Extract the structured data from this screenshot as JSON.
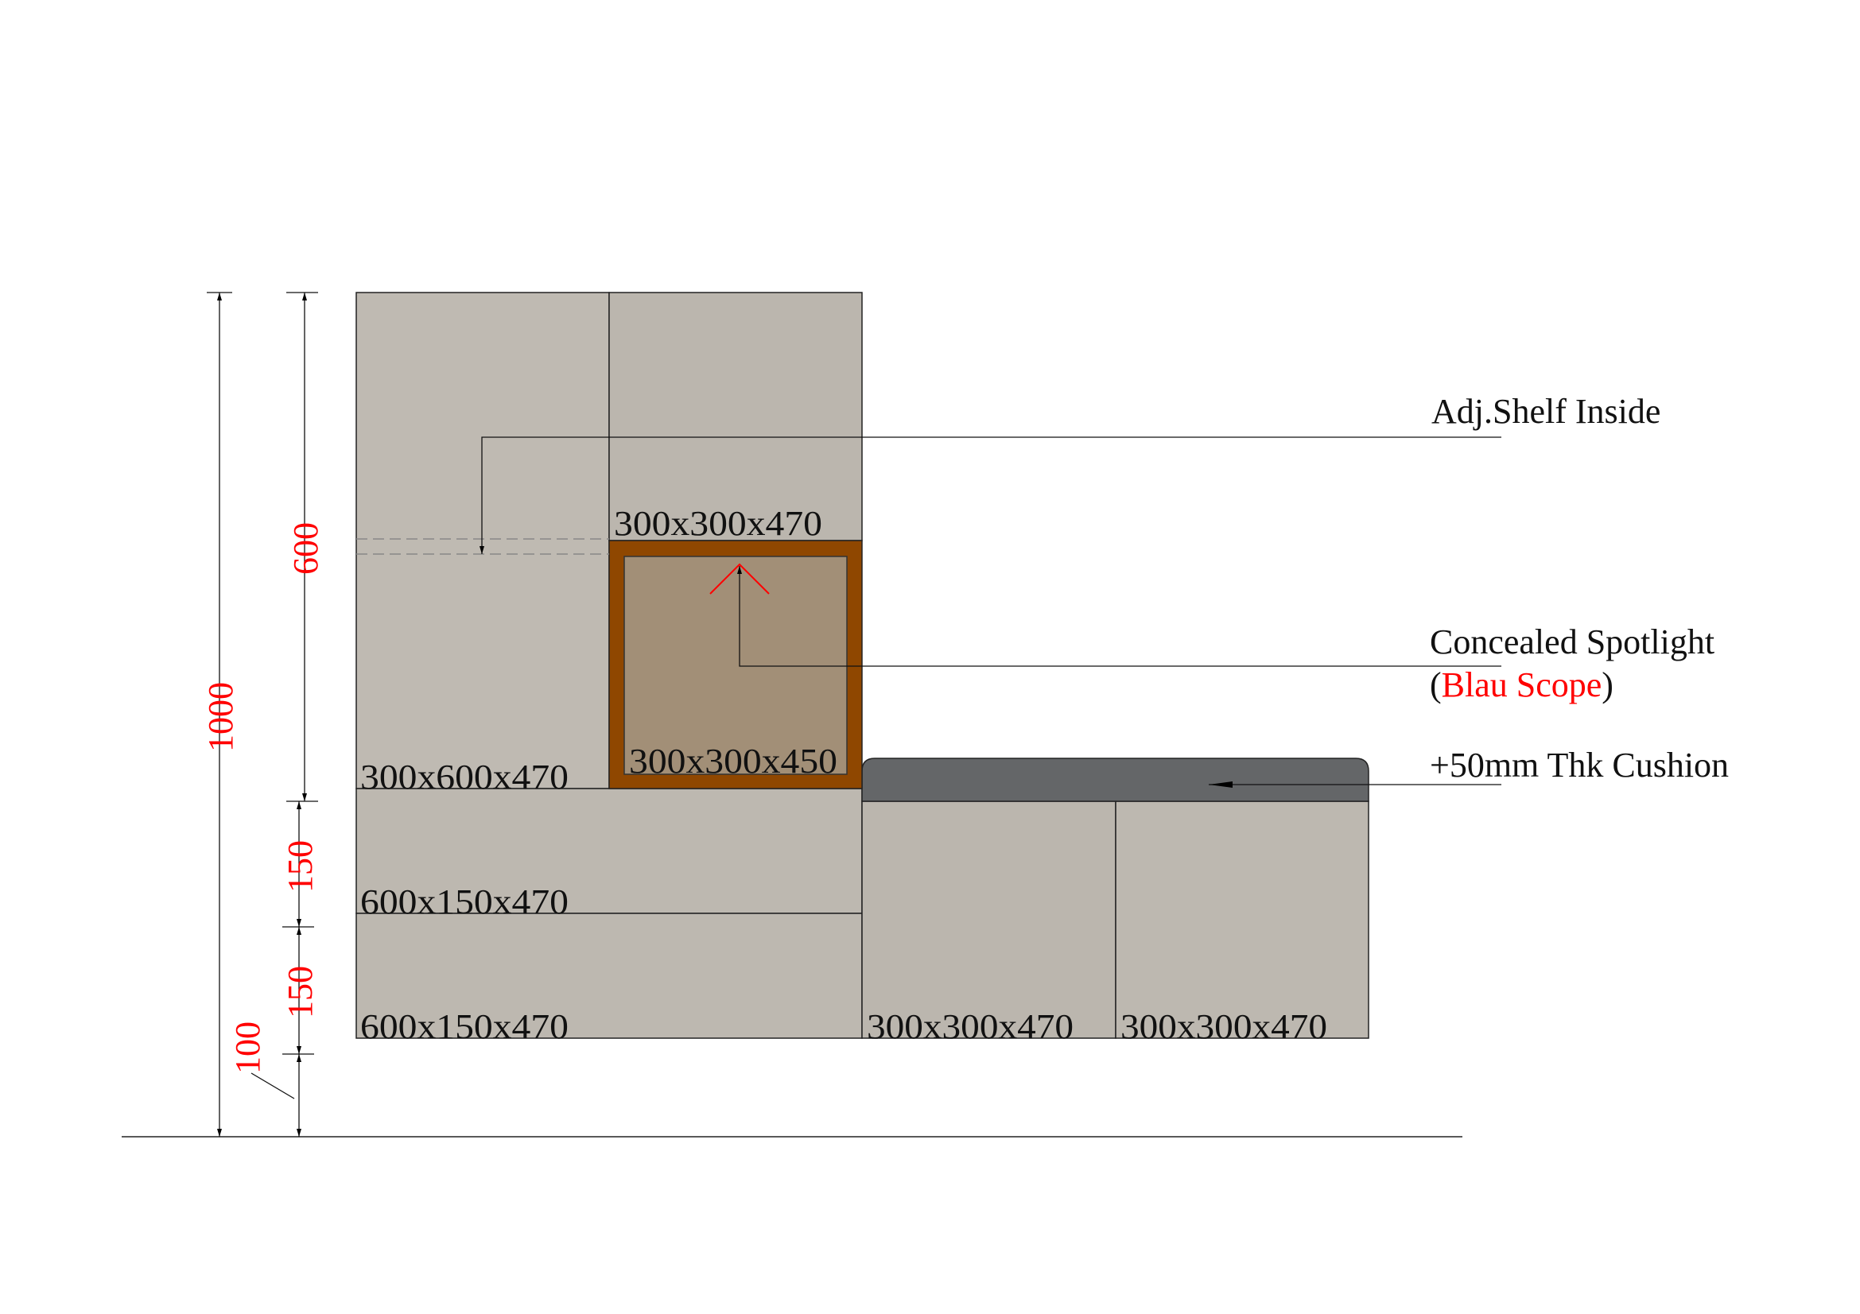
{
  "colors": {
    "cabinet": "#bdb8b0",
    "niche_frame": "#8f4700",
    "niche_inner": "#a28f77",
    "cushion": "#646668",
    "dimension": "#ff0000",
    "line": "#222222"
  },
  "modules": {
    "tall_left": "300x600x470",
    "upper_right": "300x300x470",
    "niche": "300x300x450",
    "drawer_top": "600x150x470",
    "drawer_bottom": "600x150x470",
    "bench_left": "300x300x470",
    "bench_right": "300x300x470"
  },
  "dimensions": {
    "overall": "1000",
    "upper": "600",
    "drawer_1": "150",
    "drawer_2": "150",
    "plinth": "100"
  },
  "annotations": {
    "shelf": "Adj.Shelf Inside",
    "spotlight": "Concealed Spotlight",
    "spotlight_open": "(",
    "spotlight_brand": "Blau Scope",
    "spotlight_close": ")",
    "cushion": "+50mm Thk Cushion"
  }
}
